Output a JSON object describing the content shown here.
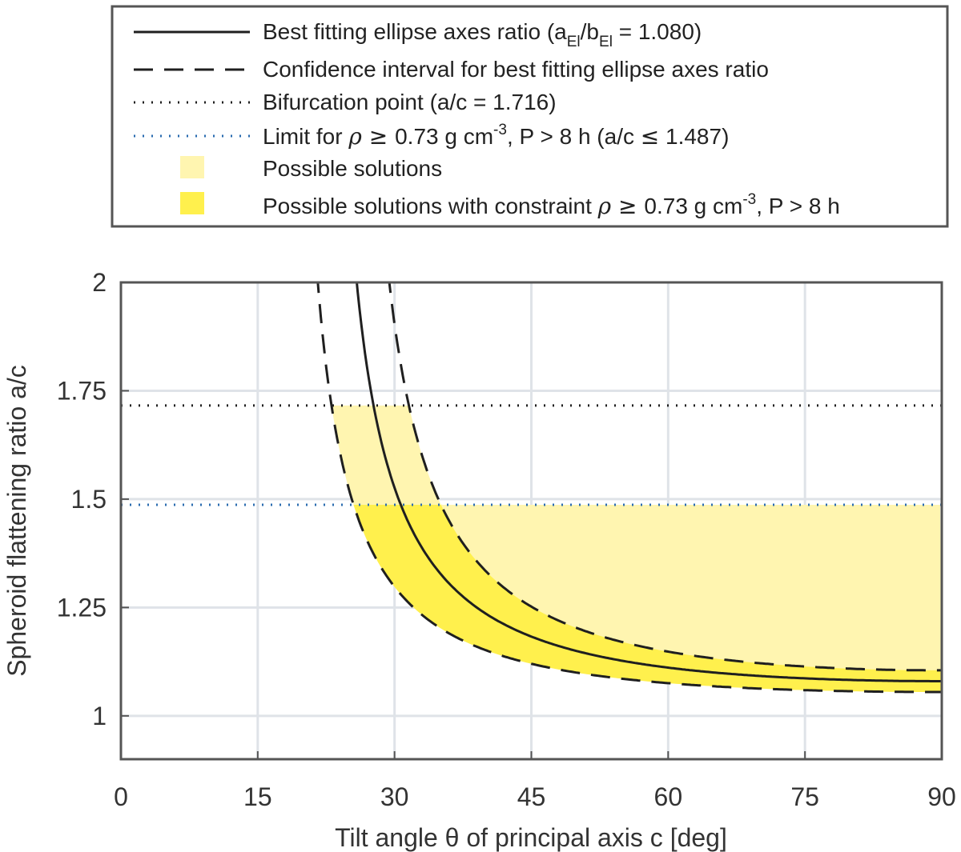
{
  "chart_data": {
    "type": "line",
    "title": "",
    "xlabel": "Tilt angle θ of principal axis c [deg]",
    "ylabel": "Spheroid flattening ratio a/c",
    "xlim": [
      0,
      90
    ],
    "ylim": [
      0.9,
      2
    ],
    "x_ticks": [
      0,
      15,
      30,
      45,
      60,
      75,
      90
    ],
    "x_tick_labels": [
      "0",
      "15",
      "30",
      "45",
      "60",
      "75",
      "90"
    ],
    "y_ticks": [
      1,
      1.25,
      1.5,
      1.75,
      2
    ],
    "y_tick_labels": [
      "1",
      "1.25",
      "1.5",
      "1.75",
      "2"
    ],
    "grid": true,
    "axes_ratio": 1.08,
    "axes_ratio_lower": 1.055,
    "axes_ratio_upper": 1.105,
    "bifurcation_ac": 1.716,
    "density_limit_ac": 1.487,
    "colors": {
      "best_fit": "#1f1f1f",
      "confidence": "#1f1f1f",
      "bifurcation": "#1f1f1f",
      "density_limit": "#2b6cb0",
      "possible": "#fff5b0",
      "constrained": "#fff04d",
      "grid": "#dfe3e8",
      "axes": "#555555"
    },
    "legend_position": "top",
    "legend": [
      {
        "id": "best",
        "style": "solid",
        "text": "Best fitting ellipse axes ratio (a",
        "sub1": "El",
        "mid": "/b",
        "sub2": "El",
        "rest": " = 1.080)"
      },
      {
        "id": "ci",
        "style": "dashed",
        "text": "Confidence interval for best fitting ellipse axes ratio"
      },
      {
        "id": "bif",
        "style": "dotted",
        "text": "Bifurcation point (a/c = 1.716)"
      },
      {
        "id": "limit",
        "style": "dotted-blue",
        "pre": "Limit for ",
        "sym": "ρ",
        "geq": " ≥ ",
        "val": "0.73 g cm",
        "sup": "-3",
        "rest": ", P > 8 h (a/c ",
        "leq": "≤",
        "end": " 1.487)"
      },
      {
        "id": "pos",
        "style": "patch-light",
        "text": "Possible solutions"
      },
      {
        "id": "con",
        "style": "patch-strong",
        "pre": "Possible solutions with constraint ",
        "sym": "ρ",
        "geq": " ≥ ",
        "val": "0.73 g cm",
        "sup": "-3",
        "rest": ", P > 8 h"
      }
    ],
    "series": [
      {
        "name": "Best fitting ellipse axes ratio",
        "style": "solid",
        "x": [
          25.8,
          27.5,
          30,
          35,
          40,
          45,
          50,
          55,
          60,
          65,
          70,
          75,
          80,
          85,
          90
        ],
        "y": [
          2.0,
          1.74,
          1.49,
          1.3,
          1.23,
          1.18,
          1.15,
          1.125,
          1.11,
          1.1,
          1.093,
          1.087,
          1.083,
          1.081,
          1.08
        ]
      },
      {
        "name": "Confidence interval upper",
        "style": "dashed",
        "x": [
          29.2,
          31.4,
          35,
          40,
          45,
          50,
          55,
          60,
          65,
          70,
          75,
          80,
          85,
          90
        ],
        "y": [
          2.0,
          1.72,
          1.49,
          1.31,
          1.23,
          1.18,
          1.155,
          1.14,
          1.128,
          1.12,
          1.113,
          1.109,
          1.106,
          1.105
        ]
      },
      {
        "name": "Confidence interval lower",
        "style": "dashed",
        "x": [
          22.0,
          23.2,
          25.8,
          30,
          35,
          40,
          45,
          50,
          55,
          60,
          65,
          70,
          75,
          80,
          85,
          90
        ],
        "y": [
          2.0,
          1.72,
          1.49,
          1.3,
          1.2,
          1.15,
          1.12,
          1.1,
          1.085,
          1.075,
          1.068,
          1.063,
          1.06,
          1.058,
          1.056,
          1.055
        ]
      }
    ]
  }
}
